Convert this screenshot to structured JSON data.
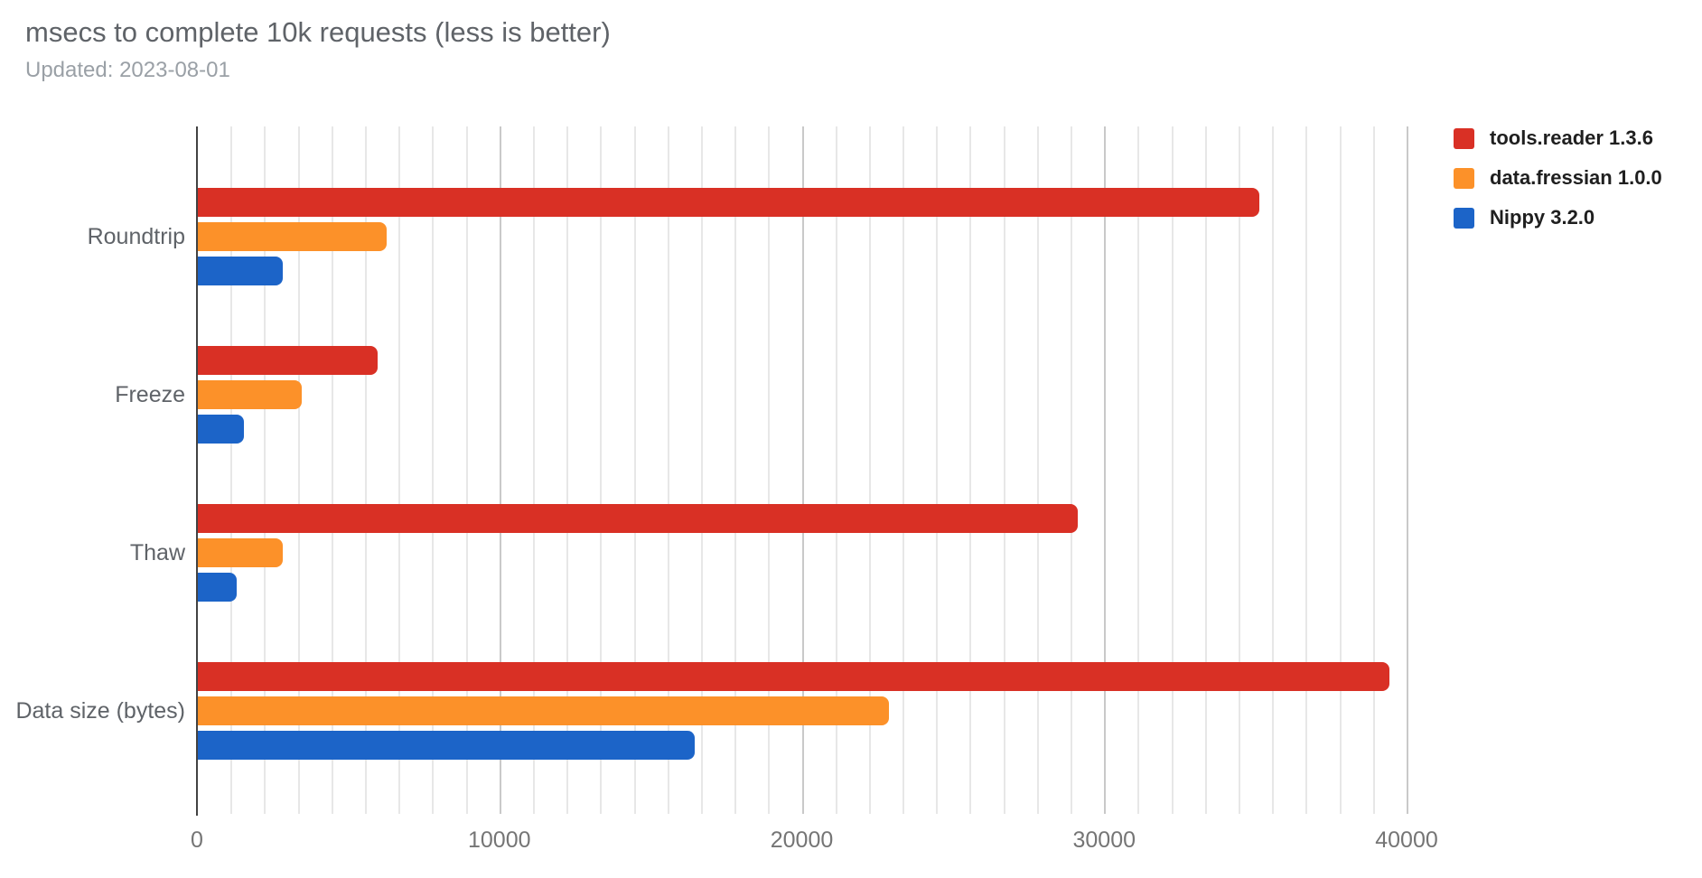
{
  "header": {
    "title": "msecs to complete 10k requests (less is better)",
    "subtitle": "Updated: 2023-08-01"
  },
  "chart_data": {
    "type": "bar",
    "orientation": "horizontal",
    "title": "msecs to complete 10k requests (less is better)",
    "subtitle": "Updated: 2023-08-01",
    "categories": [
      "Roundtrip",
      "Freeze",
      "Thaw",
      "Data size (bytes)"
    ],
    "series": [
      {
        "name": "tools.reader 1.3.6",
        "color": "#d93025",
        "values": [
          35100,
          5950,
          29100,
          39400
        ]
      },
      {
        "name": "data.fressian 1.0.0",
        "color": "#fc9129",
        "values": [
          6240,
          3430,
          2820,
          22840
        ]
      },
      {
        "name": "Nippy 3.2.0",
        "color": "#1c64c8",
        "values": [
          2820,
          1530,
          1290,
          16430
        ]
      }
    ],
    "xlabel": "",
    "ylabel": "",
    "x_axis": {
      "min": 0,
      "max": 40000,
      "ticks": [
        0,
        10000,
        20000,
        30000,
        40000
      ],
      "tick_labels": [
        "0",
        "10000",
        "20000",
        "30000",
        "40000"
      ],
      "minor_gridlines_per_major": 9
    },
    "legend_position": "right",
    "grid": true
  },
  "colors": {
    "background": "#ffffff",
    "axis_line": "#424242",
    "gridline_minor": "#e7e7e7",
    "gridline_major": "#c9c9c9",
    "title_text": "#5f6368",
    "subtitle_text": "#9aa0a6",
    "category_text": "#5f6368",
    "tick_text": "#757575",
    "legend_text": "#1f1f1f"
  }
}
